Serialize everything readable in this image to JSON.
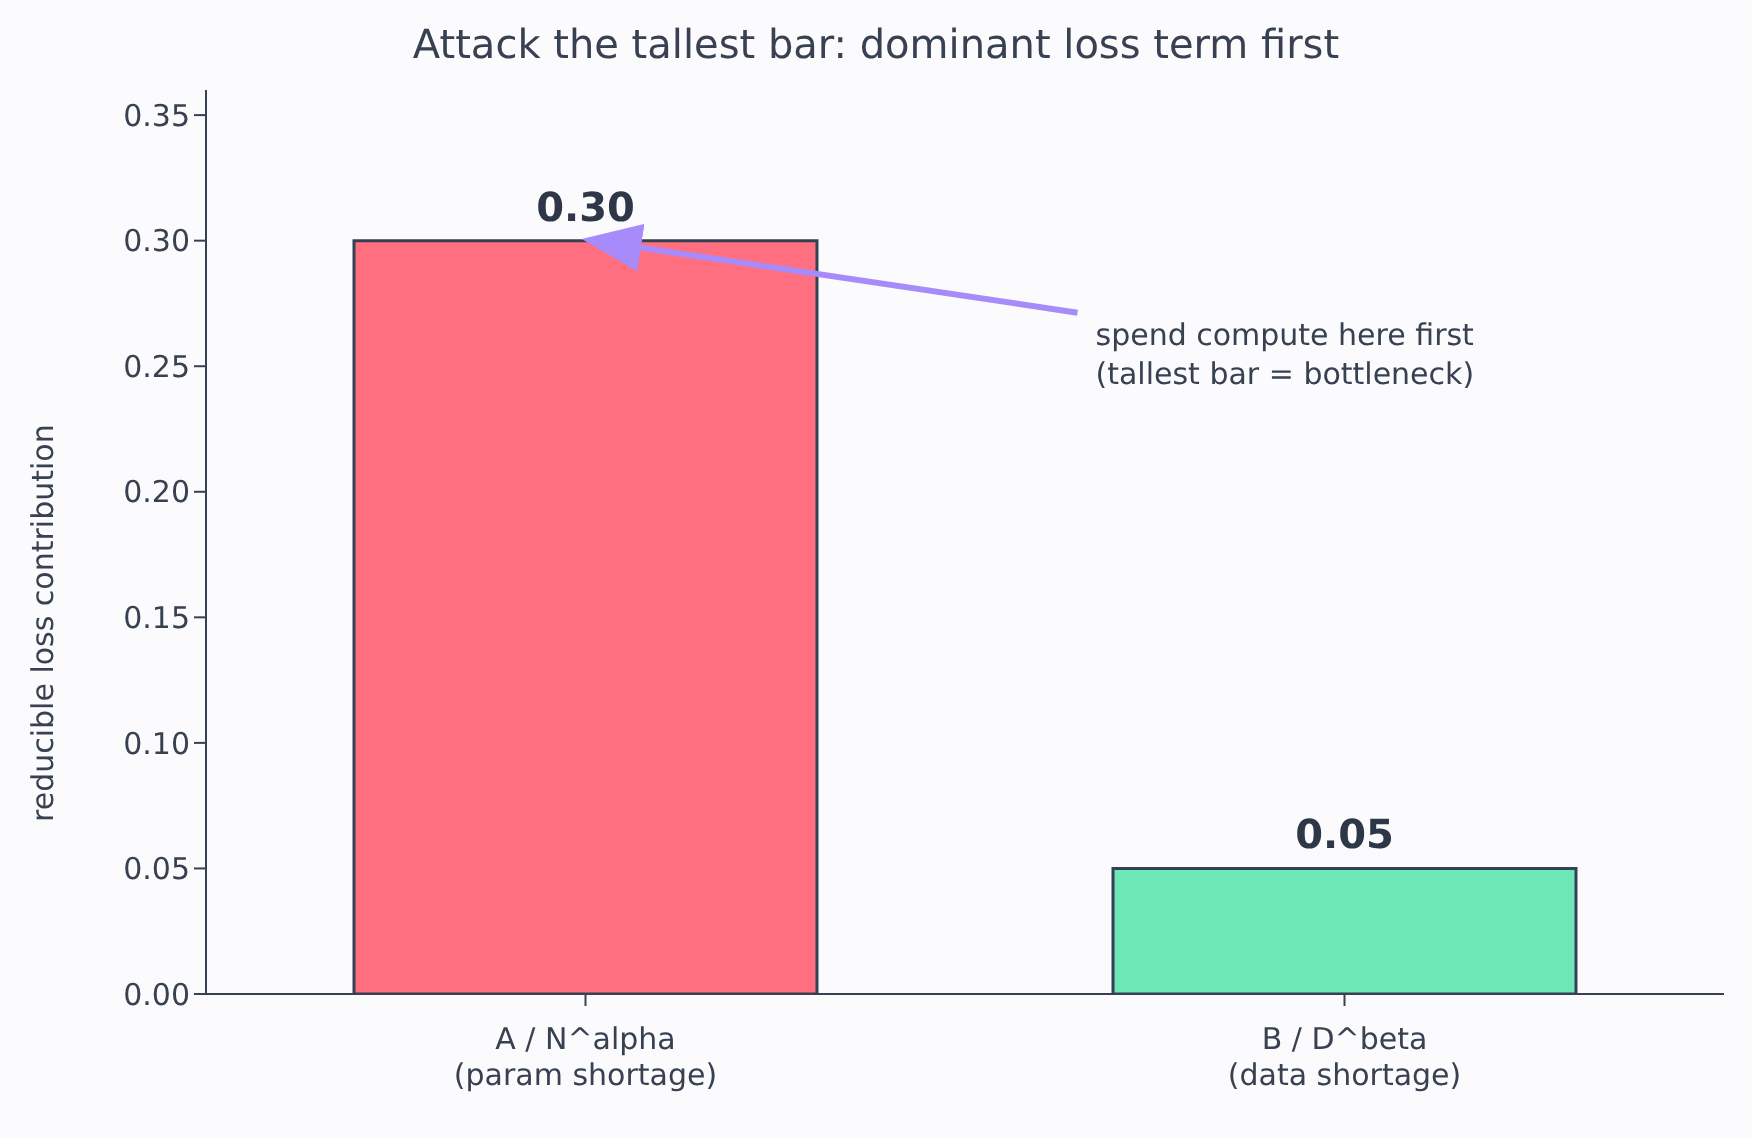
{
  "chart_data": {
    "type": "bar",
    "title": "Attack the tallest bar: dominant loss term first",
    "ylabel": "reducible loss contribution",
    "categories": [
      "A / N^alpha\n(param shortage)",
      "B / D^beta\n(data shortage)"
    ],
    "values": [
      0.3,
      0.05
    ],
    "colors": [
      "#ff6f80",
      "#6ee7b7"
    ],
    "value_labels": [
      "0.30",
      "0.05"
    ],
    "ylim": [
      0,
      0.36
    ],
    "yticks": [
      {
        "value": 0,
        "label": "0.00"
      },
      0.05,
      {
        "value": 0.1,
        "label": "0.10"
      },
      0.15,
      {
        "value": 0.2,
        "label": "0.20"
      },
      0.25,
      {
        "value": 0.3,
        "label": "0.30"
      },
      0.35
    ],
    "grid": false,
    "legend": false,
    "annotations": [
      {
        "text": "spend compute here first\n(tallest bar = bottleneck)",
        "x": "A / N^alpha\n(param shortage)",
        "y": 0.3
      }
    ]
  }
}
